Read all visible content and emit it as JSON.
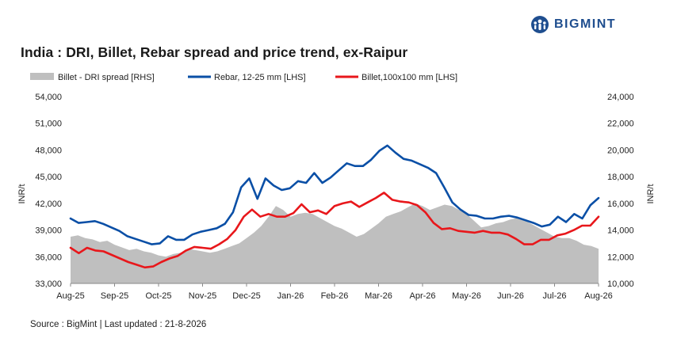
{
  "title": "India : DRI, Billet, Rebar spread and price trend, ex-Raipur",
  "logo_text": "BIGMINT",
  "source": "Source : BigMint | Last updated : 21-8-2026",
  "colors": {
    "spread": "#bfbfbf",
    "rebar": "#0a4fa6",
    "billet": "#e8171b",
    "brand": "#1f4e8f"
  },
  "chart_data": {
    "type": "line",
    "x_ticks": [
      "Aug-25",
      "Sep-25",
      "Oct-25",
      "Nov-25",
      "Dec-25",
      "Jan-26",
      "Feb-26",
      "Mar-26",
      "Apr-26",
      "May-26",
      "Jun-26",
      "Jul-26",
      "Aug-26"
    ],
    "ylabel_left": "INR/t",
    "ylabel_right": "INR/t",
    "ylim_left": [
      33000,
      54000
    ],
    "ylim_right": [
      10000,
      24000
    ],
    "yticks_left": [
      "33,000",
      "36,000",
      "39,000",
      "42,000",
      "45,000",
      "48,000",
      "51,000",
      "54,000"
    ],
    "yticks_right": [
      "10,000",
      "12,000",
      "14,000",
      "16,000",
      "18,000",
      "20,000",
      "22,000",
      "24,000"
    ],
    "legend_position": "top",
    "series": [
      {
        "name": "Billet - DRI spread  [RHS]",
        "axis": "right",
        "kind": "area",
        "values": [
          13500,
          13600,
          13400,
          13300,
          13100,
          13200,
          12900,
          12700,
          12500,
          12600,
          12400,
          12300,
          12100,
          12000,
          12200,
          12300,
          12600,
          12500,
          12400,
          12300,
          12400,
          12600,
          12800,
          13000,
          13400,
          13800,
          14300,
          15000,
          15800,
          15500,
          15000,
          15200,
          15300,
          15200,
          14900,
          14600,
          14300,
          14100,
          13800,
          13500,
          13700,
          14100,
          14500,
          15000,
          15200,
          15400,
          15700,
          16000,
          15800,
          15500,
          15700,
          15900,
          15800,
          15500,
          15200,
          14700,
          14200,
          14300,
          14500,
          14600,
          14800,
          14900,
          14700,
          14400,
          14100,
          13800,
          13500,
          13400,
          13400,
          13200,
          12900,
          12800,
          12600
        ]
      },
      {
        "name": "Rebar, 12-25 mm [LHS]",
        "axis": "left",
        "kind": "line",
        "values": [
          40300,
          39800,
          39900,
          40000,
          39700,
          39300,
          38900,
          38300,
          38000,
          37700,
          37400,
          37500,
          38300,
          37900,
          37900,
          38500,
          38800,
          39000,
          39200,
          39700,
          41000,
          43800,
          44800,
          42500,
          44800,
          44000,
          43500,
          43700,
          44500,
          44300,
          45400,
          44300,
          44900,
          45700,
          46500,
          46200,
          46200,
          46900,
          47900,
          48500,
          47700,
          47000,
          46800,
          46400,
          46000,
          45400,
          43800,
          42100,
          41300,
          40700,
          40600,
          40300,
          40300,
          40500,
          40600,
          40400,
          40100,
          39800,
          39400,
          39600,
          40500,
          39900,
          40800,
          40300,
          41800,
          42600
        ]
      },
      {
        "name": "Billet,100x100 mm [LHS]",
        "axis": "left",
        "kind": "line",
        "values": [
          37000,
          36400,
          37000,
          36700,
          36600,
          36200,
          35800,
          35400,
          35100,
          34800,
          34900,
          35400,
          35800,
          36100,
          36700,
          37100,
          37000,
          36900,
          37400,
          38000,
          39000,
          40500,
          41300,
          40500,
          40800,
          40500,
          40500,
          40900,
          41900,
          41000,
          41200,
          40800,
          41700,
          42000,
          42200,
          41600,
          42100,
          42600,
          43200,
          42400,
          42200,
          42100,
          41800,
          41000,
          39800,
          39100,
          39200,
          38900,
          38800,
          38700,
          38900,
          38700,
          38700,
          38500,
          38000,
          37400,
          37400,
          37900,
          37900,
          38400,
          38600,
          39000,
          39500,
          39500,
          40500
        ]
      }
    ]
  }
}
